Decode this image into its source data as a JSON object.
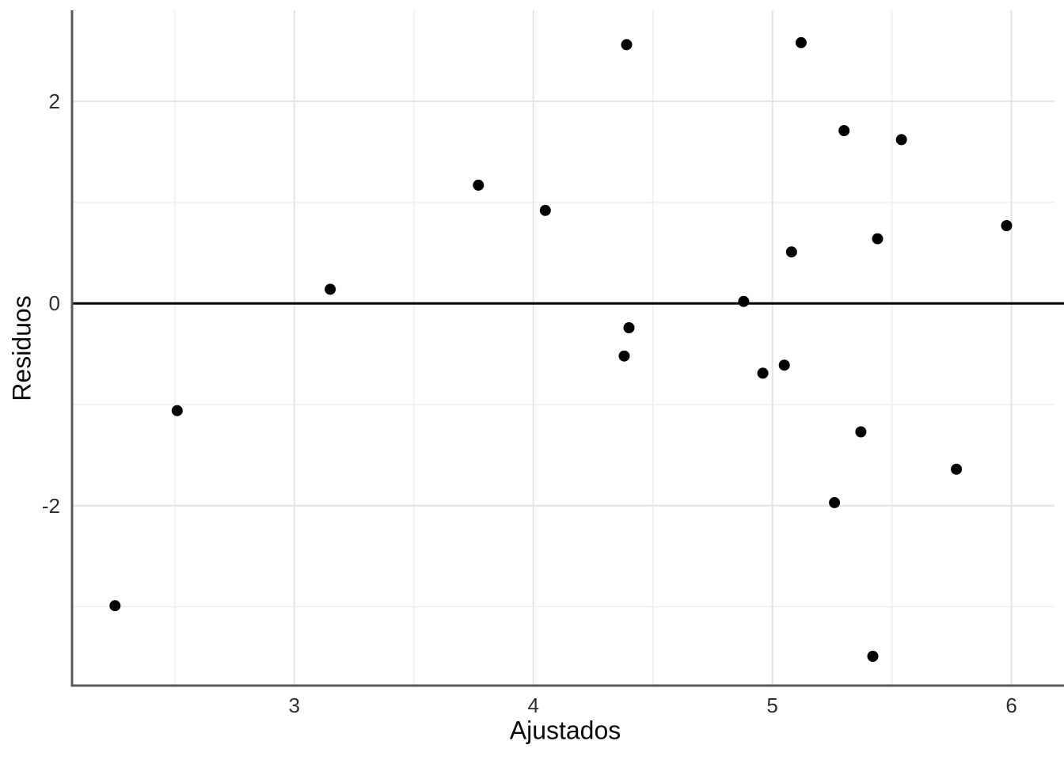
{
  "chart_data": {
    "type": "scatter",
    "title": "",
    "xlabel": "Ajustados",
    "ylabel": "Residuos",
    "xlim": [
      2.07,
      6.22
    ],
    "ylim": [
      -3.78,
      2.9
    ],
    "x_ticks": [
      3,
      4,
      5,
      6
    ],
    "y_ticks": [
      -2,
      0,
      2
    ],
    "minor_x_ticks": [
      2.5,
      3.5,
      4.5,
      5.5
    ],
    "minor_y_ticks": [
      -3,
      -1,
      1
    ],
    "grid": "major+minor",
    "legend": false,
    "reference_line_y": 0,
    "points": [
      {
        "x": 2.25,
        "y": -2.99
      },
      {
        "x": 2.51,
        "y": -1.06
      },
      {
        "x": 3.15,
        "y": 0.14
      },
      {
        "x": 3.77,
        "y": 1.17
      },
      {
        "x": 4.05,
        "y": 0.92
      },
      {
        "x": 4.38,
        "y": -0.52
      },
      {
        "x": 4.39,
        "y": 2.56
      },
      {
        "x": 4.4,
        "y": -0.24
      },
      {
        "x": 4.88,
        "y": 0.02
      },
      {
        "x": 4.96,
        "y": -0.69
      },
      {
        "x": 5.05,
        "y": -0.61
      },
      {
        "x": 5.08,
        "y": 0.51
      },
      {
        "x": 5.12,
        "y": 2.58
      },
      {
        "x": 5.26,
        "y": -1.97
      },
      {
        "x": 5.3,
        "y": 1.71
      },
      {
        "x": 5.37,
        "y": -1.27
      },
      {
        "x": 5.42,
        "y": -3.49
      },
      {
        "x": 5.44,
        "y": 0.64
      },
      {
        "x": 5.54,
        "y": 1.62
      },
      {
        "x": 5.77,
        "y": -1.64
      },
      {
        "x": 5.98,
        "y": 0.77
      }
    ],
    "colors": {
      "point": "#000000",
      "reference_line": "#000000",
      "axis_line": "#5a5a5a",
      "major_grid": "#e4e4e4",
      "minor_grid": "#f0f0f0",
      "tick_text": "#2e2e2e",
      "title_text": "#0a0a0a",
      "background": "#ffffff"
    }
  }
}
